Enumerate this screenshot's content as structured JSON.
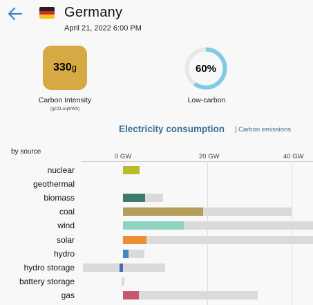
{
  "header": {
    "back_icon": "arrow-left-icon",
    "flag_icon": "germany-flag-icon",
    "country": "Germany",
    "datetime": "April 21, 2022 6:00 PM"
  },
  "carbon_intensity": {
    "value": "330",
    "unit": "g",
    "label": "Carbon Intensity",
    "sublabel": "(gCO₂eq/kWh)",
    "color": "#d6a943"
  },
  "low_carbon": {
    "value_text": "60%",
    "fraction": 0.6,
    "label": "Low-carbon",
    "ring_color": "#7ecbe5",
    "track_color": "#e8e8e8"
  },
  "tabs": {
    "active": "Electricity consumption",
    "separator": "|",
    "inactive": "Carbon emissions"
  },
  "chart_data": {
    "type": "bar",
    "ylabel": "by source",
    "x_ticks": [
      "0 GW",
      "20 GW",
      "40 GW"
    ],
    "x_tick_values": [
      0,
      20,
      40
    ],
    "unit": "GW",
    "categories": [
      "nuclear",
      "geothermal",
      "biomass",
      "coal",
      "wind",
      "solar",
      "hydro",
      "hydro storage",
      "battery storage",
      "gas"
    ],
    "series": [
      {
        "values": [
          4.0,
          0,
          5.2,
          19.0,
          14.5,
          5.6,
          1.3,
          -0.8,
          0,
          3.8
        ]
      },
      {
        "values": [
          4.0,
          0,
          9.5,
          40.0,
          45.5,
          45.5,
          5.0,
          10.0,
          0.4,
          32.0
        ]
      }
    ],
    "capacity_min": [
      0,
      0,
      0,
      0,
      0,
      0,
      0,
      -9.5,
      -0.4,
      0
    ],
    "colors": [
      "#b8bd2a",
      "#b8bd2a",
      "#3f7a6c",
      "#b49c5b",
      "#8ed3c0",
      "#ef8c35",
      "#3f86c6",
      "#3f6fb7",
      "#bbbbbb",
      "#c55870"
    ],
    "capacity_color": "#dadada"
  }
}
